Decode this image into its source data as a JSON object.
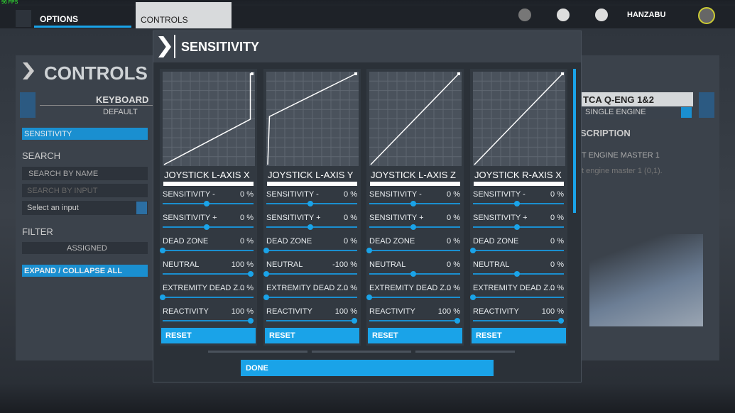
{
  "fps": "96 FPS",
  "topbar": {
    "tabs": [
      "OPTIONS",
      "CONTROLS"
    ],
    "user": "HANZABU"
  },
  "sidebar": {
    "title": "CONTROLS",
    "device": "KEYBOARD",
    "profile": "DEFAULT",
    "active": "SENSITIVITY",
    "search_heading": "SEARCH",
    "search_name": "SEARCH BY NAME",
    "search_input": "SEARCH BY INPUT",
    "select": "Select an input",
    "filter_heading": "FILTER",
    "filter": "ASSIGNED",
    "expand": "EXPAND / COLLAPSE ALL"
  },
  "right": {
    "device": "TCA Q-ENG 1&2",
    "profile": "SINGLE ENGINE",
    "heading": "SCRIPTION",
    "item": "T ENGINE MASTER 1",
    "desc": "t engine master 1 (0,1)."
  },
  "dialog": {
    "title": "SENSITIVITY",
    "done": "DONE",
    "axes": [
      {
        "name": "JOYSTICK L-AXIS X",
        "reset": "RESET",
        "settings": [
          {
            "label": "SENSITIVITY -",
            "value": 0,
            "text": "0 %",
            "range": [
              -100,
              100
            ]
          },
          {
            "label": "SENSITIVITY +",
            "value": 0,
            "text": "0 %",
            "range": [
              -100,
              100
            ]
          },
          {
            "label": "DEAD ZONE",
            "value": 0,
            "text": "0 %",
            "range": [
              0,
              100
            ]
          },
          {
            "label": "NEUTRAL",
            "value": 100,
            "text": "100 %",
            "range": [
              -100,
              100
            ]
          },
          {
            "label": "EXTREMITY DEAD Z...",
            "value": 0,
            "text": "0 %",
            "range": [
              0,
              100
            ]
          },
          {
            "label": "REACTIVITY",
            "value": 100,
            "text": "100 %",
            "range": [
              0,
              100
            ]
          }
        ]
      },
      {
        "name": "JOYSTICK L-AXIS Y",
        "reset": "RESET",
        "settings": [
          {
            "label": "SENSITIVITY -",
            "value": 0,
            "text": "0 %",
            "range": [
              -100,
              100
            ]
          },
          {
            "label": "SENSITIVITY +",
            "value": 0,
            "text": "0 %",
            "range": [
              -100,
              100
            ]
          },
          {
            "label": "DEAD ZONE",
            "value": 0,
            "text": "0 %",
            "range": [
              0,
              100
            ]
          },
          {
            "label": "NEUTRAL",
            "value": -100,
            "text": "-100 %",
            "range": [
              -100,
              100
            ]
          },
          {
            "label": "EXTREMITY DEAD Z...",
            "value": 0,
            "text": "0 %",
            "range": [
              0,
              100
            ]
          },
          {
            "label": "REACTIVITY",
            "value": 100,
            "text": "100 %",
            "range": [
              0,
              100
            ]
          }
        ]
      },
      {
        "name": "JOYSTICK L-AXIS Z",
        "reset": "RESET",
        "settings": [
          {
            "label": "SENSITIVITY -",
            "value": 0,
            "text": "0 %",
            "range": [
              -100,
              100
            ]
          },
          {
            "label": "SENSITIVITY +",
            "value": 0,
            "text": "0 %",
            "range": [
              -100,
              100
            ]
          },
          {
            "label": "DEAD ZONE",
            "value": 0,
            "text": "0 %",
            "range": [
              0,
              100
            ]
          },
          {
            "label": "NEUTRAL",
            "value": 0,
            "text": "0 %",
            "range": [
              -100,
              100
            ]
          },
          {
            "label": "EXTREMITY DEAD Z...",
            "value": 0,
            "text": "0 %",
            "range": [
              0,
              100
            ]
          },
          {
            "label": "REACTIVITY",
            "value": 100,
            "text": "100 %",
            "range": [
              0,
              100
            ]
          }
        ]
      },
      {
        "name": "JOYSTICK R-AXIS X",
        "reset": "RESET",
        "settings": [
          {
            "label": "SENSITIVITY -",
            "value": 0,
            "text": "0 %",
            "range": [
              -100,
              100
            ]
          },
          {
            "label": "SENSITIVITY +",
            "value": 0,
            "text": "0 %",
            "range": [
              -100,
              100
            ]
          },
          {
            "label": "DEAD ZONE",
            "value": 0,
            "text": "0 %",
            "range": [
              0,
              100
            ]
          },
          {
            "label": "NEUTRAL",
            "value": 0,
            "text": "0 %",
            "range": [
              -100,
              100
            ]
          },
          {
            "label": "EXTREMITY DEAD Z...",
            "value": 0,
            "text": "0 %",
            "range": [
              0,
              100
            ]
          },
          {
            "label": "REACTIVITY",
            "value": 100,
            "text": "100 %",
            "range": [
              0,
              100
            ]
          }
        ]
      }
    ]
  }
}
